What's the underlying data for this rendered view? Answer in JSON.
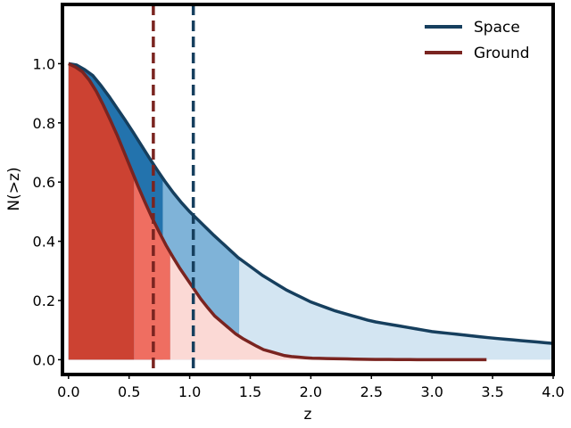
{
  "chart_data": {
    "type": "line",
    "title": "",
    "xlabel": "z",
    "ylabel": "N(>z)",
    "xlim": [
      -0.05,
      4.0
    ],
    "ylim": [
      -0.05,
      1.2
    ],
    "xticks": [
      "0.0",
      "0.5",
      "1.0",
      "1.5",
      "2.0",
      "2.5",
      "3.0",
      "3.5",
      "4.0"
    ],
    "yticks": [
      "0.0",
      "0.2",
      "0.4",
      "0.6",
      "0.8",
      "1.0"
    ],
    "legend_position": "top-right",
    "series": [
      {
        "name": "Space",
        "color": "#163f5e",
        "x": [
          0.0,
          0.05,
          0.1,
          0.2,
          0.3,
          0.4,
          0.5,
          0.6,
          0.7,
          0.8,
          0.9,
          1.0,
          1.2,
          1.4,
          1.6,
          1.8,
          2.0,
          2.2,
          2.5,
          3.0,
          3.5,
          4.0
        ],
        "y": [
          1.0,
          0.998,
          0.99,
          0.96,
          0.91,
          0.85,
          0.79,
          0.725,
          0.66,
          0.6,
          0.545,
          0.5,
          0.42,
          0.345,
          0.285,
          0.235,
          0.195,
          0.165,
          0.13,
          0.095,
          0.073,
          0.055
        ]
      },
      {
        "name": "Ground",
        "color": "#7a2420",
        "x": [
          0.0,
          0.05,
          0.1,
          0.2,
          0.3,
          0.4,
          0.5,
          0.6,
          0.7,
          0.8,
          0.9,
          1.0,
          1.1,
          1.2,
          1.4,
          1.6,
          1.8,
          2.0,
          2.5,
          3.0,
          3.45
        ],
        "y": [
          1.0,
          0.99,
          0.98,
          0.93,
          0.85,
          0.76,
          0.66,
          0.56,
          0.47,
          0.39,
          0.32,
          0.26,
          0.2,
          0.15,
          0.08,
          0.035,
          0.012,
          0.005,
          0.001,
          0.0,
          0.0
        ]
      }
    ],
    "vlines": [
      {
        "name": "Ground",
        "x": 0.7,
        "color": "#7a2420",
        "style": "dashed"
      },
      {
        "name": "Space",
        "x": 1.03,
        "color": "#163f5e",
        "style": "dashed"
      }
    ],
    "fill_bands": [
      {
        "series": "Space",
        "from": 0.0,
        "to": 0.78,
        "color": "#2373ad"
      },
      {
        "series": "Space",
        "from": 0.78,
        "to": 1.41,
        "color": "#7fb3d8"
      },
      {
        "series": "Space",
        "from": 1.41,
        "to": 4.0,
        "color": "#d3e5f2"
      },
      {
        "series": "Ground",
        "from": 0.0,
        "to": 0.54,
        "color": "#cc4232"
      },
      {
        "series": "Ground",
        "from": 0.54,
        "to": 0.84,
        "color": "#ef6e61"
      },
      {
        "series": "Ground",
        "from": 0.84,
        "to": 3.45,
        "color": "#fbd9d5"
      }
    ]
  }
}
